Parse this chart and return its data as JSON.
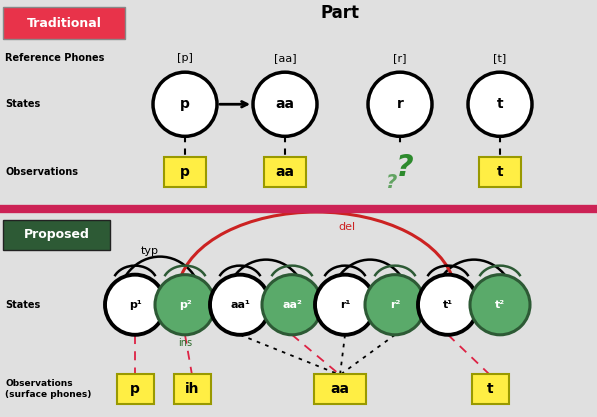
{
  "fig_width": 5.97,
  "fig_height": 4.17,
  "dpi": 100,
  "traditional_label": "Traditional",
  "traditional_bg": "#e8334a",
  "traditional_text_color": "#ffffff",
  "part_label": "Part",
  "proposed_label": "Proposed",
  "proposed_bg": "#2d5a35",
  "proposed_text_color": "#ffffff",
  "divider_color": "#cc2255",
  "ref_phones_label": "Reference Phones",
  "states_label": "States",
  "observations_label": "Observations",
  "obs_surface_label": "Observations\n(surface phones)",
  "trad_ref_phones": [
    "[p]",
    "[aa]",
    "[r]",
    "[t]"
  ],
  "trad_states": [
    "p",
    "aa",
    "r",
    "t"
  ],
  "trad_obs": [
    "p",
    "aa",
    "?",
    "t"
  ],
  "trad_obs_box_color": "#ffee44",
  "question_color": "#2d8a2d",
  "prop_states": [
    "p¹",
    "p²",
    "aa¹",
    "aa²",
    "r¹",
    "r²",
    "t¹",
    "t²"
  ],
  "prop_white_indices": [
    0,
    2,
    4,
    6
  ],
  "prop_green_indices": [
    1,
    3,
    5,
    7
  ],
  "prop_green_color": "#5aaa6a",
  "prop_green_edge": "#2d5a35",
  "prop_obs_labels": [
    "p",
    "ih",
    "aa",
    "t"
  ],
  "prop_obs_box_color": "#ffee44",
  "typ_label": "typ",
  "ins_label": "ins",
  "del_label": "del",
  "del_color": "#cc2222",
  "green_label_color": "#2d6b2d"
}
